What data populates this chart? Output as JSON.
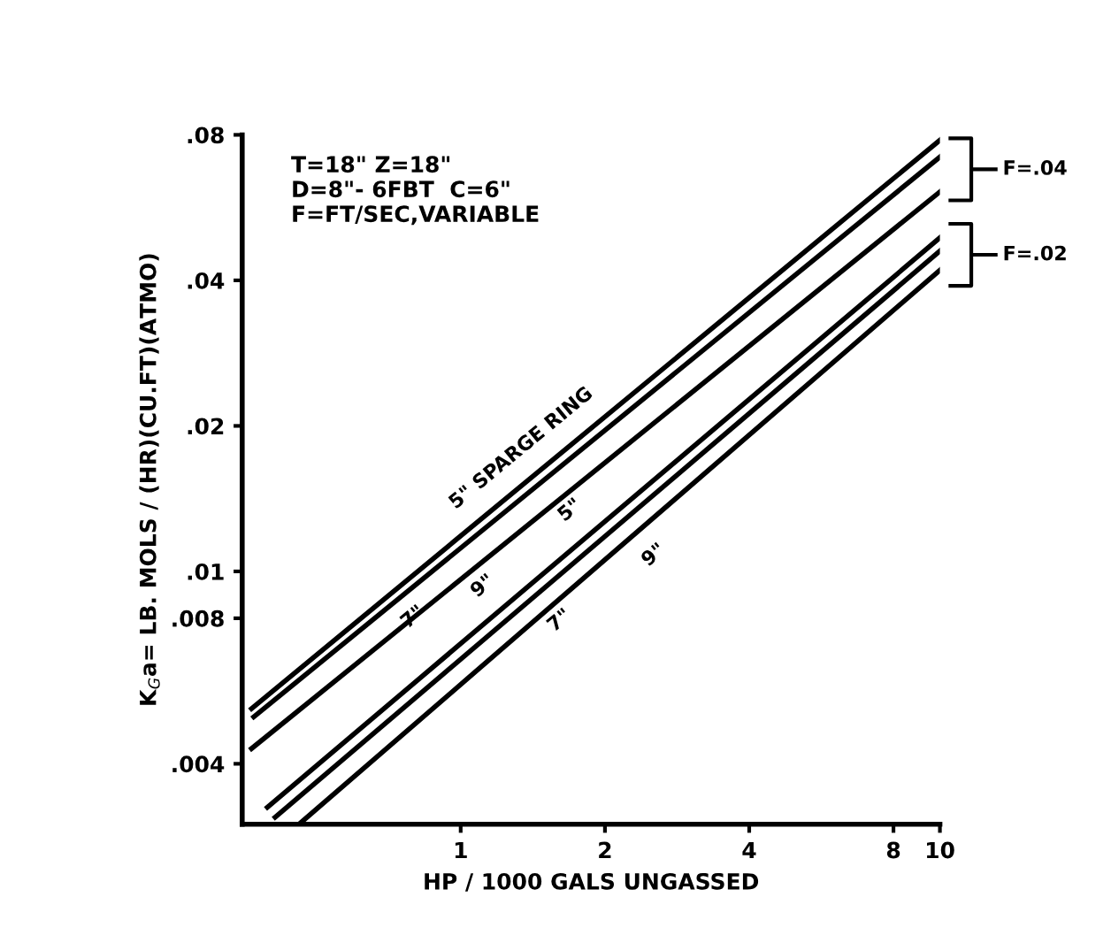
{
  "chart_data": {
    "type": "line",
    "xlabel": "HP / 1000 GALS UNGASSED",
    "ylabel": "K$_{G}$a= LB. MOLS / (HR)(CU.FT)(ATMO)",
    "log": "xy",
    "xlim": [
      0.35,
      10
    ],
    "ylim": [
      0.003,
      0.08
    ],
    "xticks": [
      1,
      2,
      4,
      8,
      10
    ],
    "yticks": [
      {
        "value": 0.004,
        "label": ".004"
      },
      {
        "value": 0.008,
        "label": ".008"
      },
      {
        "value": 0.01,
        "label": ".01"
      },
      {
        "value": 0.02,
        "label": ".02"
      },
      {
        "value": 0.04,
        "label": ".04"
      },
      {
        "value": 0.08,
        "label": ".08"
      }
    ],
    "grid": false,
    "marker": "none",
    "line_style": "solid",
    "series": [
      {
        "color": "#000000",
        "x": [
          0.366,
          10
        ],
        "values": [
          0.0052,
          0.078
        ]
      },
      {
        "color": "#000000",
        "x": [
          0.37,
          10
        ],
        "values": [
          0.005,
          0.072
        ]
      },
      {
        "color": "#000000",
        "x": [
          0.366,
          10
        ],
        "values": [
          0.0043,
          0.061
        ]
      },
      {
        "color": "#000000",
        "x": [
          0.395,
          10
        ],
        "values": [
          0.00325,
          0.049
        ]
      },
      {
        "color": "#000000",
        "x": [
          0.41,
          10
        ],
        "values": [
          0.0031,
          0.046
        ]
      },
      {
        "color": "#000000",
        "x": [
          0.46,
          10
        ],
        "values": [
          0.003,
          0.042
        ]
      }
    ],
    "annotations": [
      "T=18\" Z=18\"\nD=8\"- 6FBT  C=6\"\nF=FT/SEC,VARIABLE",
      "5\" SPARGE RING",
      "7\"",
      "9\"",
      "5\"",
      "7\"",
      "9\"",
      "F=.04",
      "F=.02"
    ]
  }
}
